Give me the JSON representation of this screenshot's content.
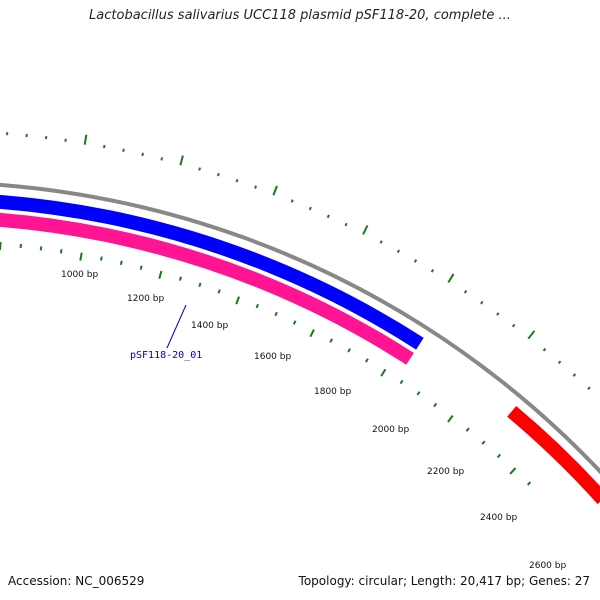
{
  "title": "Lactobacillus salivarius UCC118 plasmid pSF118-20, complete ...",
  "footer": {
    "accession": "Accession: NC_006529",
    "summary": "Topology: circular; Length: 20,417 bp; Genes: 27"
  },
  "map": {
    "topology": "circular",
    "colors": {
      "backbone": "#888888",
      "forward_gene": "#0000ff",
      "reverse_gene": "#ff1493",
      "other_gene": "#ff0000",
      "ticks": "#1a7a1a",
      "label_line": "#0000cc"
    },
    "ruler_labels": [
      "1000 bp",
      "1200 bp",
      "1400 bp",
      "1600 bp",
      "1800 bp",
      "2000 bp",
      "2200 bp",
      "2400 bp",
      "2600 bp"
    ],
    "gene_label": "pSF118-20_01"
  }
}
